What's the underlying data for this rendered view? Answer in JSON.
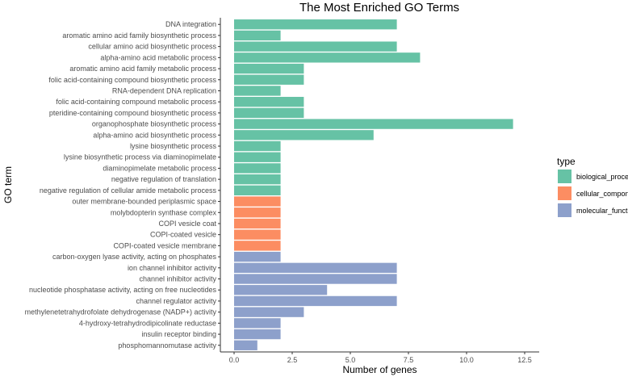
{
  "chart_data": {
    "type": "bar",
    "orientation": "horizontal",
    "title": "The Most Enriched GO Terms",
    "xlabel": "Number of genes",
    "ylabel": "GO term",
    "xlim": [
      0,
      12.5
    ],
    "xticks": [
      "0.0",
      "2.5",
      "5.0",
      "7.5",
      "10.0",
      "12.5"
    ],
    "xtick_values": [
      0,
      2.5,
      5,
      7.5,
      10,
      12.5
    ],
    "grid": false,
    "legend": {
      "title": "type",
      "placement": "right",
      "entries": [
        {
          "name": "biological_process",
          "color": "#66c2a5"
        },
        {
          "name": "cellular_component",
          "color": "#fc8d62"
        },
        {
          "name": "molecular_function",
          "color": "#8da0cb"
        }
      ]
    },
    "categories": [
      "DNA integration",
      "aromatic amino acid family biosynthetic process",
      "cellular amino acid biosynthetic process",
      "alpha-amino acid metabolic process",
      "aromatic amino acid family metabolic process",
      "folic acid-containing compound biosynthetic process",
      "RNA-dependent DNA replication",
      "folic acid-containing compound metabolic process",
      "pteridine-containing compound biosynthetic process",
      "organophosphate biosynthetic process",
      "alpha-amino acid biosynthetic process",
      "lysine biosynthetic process",
      "lysine biosynthetic process via diaminopimelate",
      "diaminopimelate metabolic process",
      "negative regulation of translation",
      "negative regulation of cellular amide metabolic process",
      "outer membrane-bounded periplasmic space",
      "molybdopterin synthase complex",
      "COPI vesicle coat",
      "COPI-coated vesicle",
      "COPI-coated vesicle membrane",
      "carbon-oxygen lyase activity, acting on phosphates",
      "ion channel inhibitor activity",
      "channel inhibitor activity",
      "nucleotide phosphatase activity, acting on free nucleotides",
      "channel regulator activity",
      "methylenetetrahydrofolate dehydrogenase (NADP+) activity",
      "4-hydroxy-tetrahydrodipicolinate reductase",
      "insulin receptor binding",
      "phosphomannomutase activity"
    ],
    "values": [
      7,
      2,
      7,
      8,
      3,
      3,
      2,
      3,
      3,
      12,
      6,
      2,
      2,
      2,
      2,
      2,
      2,
      2,
      2,
      2,
      2,
      2,
      7,
      7,
      4,
      7,
      3,
      2,
      2,
      1
    ],
    "types": [
      0,
      0,
      0,
      0,
      0,
      0,
      0,
      0,
      0,
      0,
      0,
      0,
      0,
      0,
      0,
      0,
      1,
      1,
      1,
      1,
      1,
      2,
      2,
      2,
      2,
      2,
      2,
      2,
      2,
      2
    ]
  }
}
